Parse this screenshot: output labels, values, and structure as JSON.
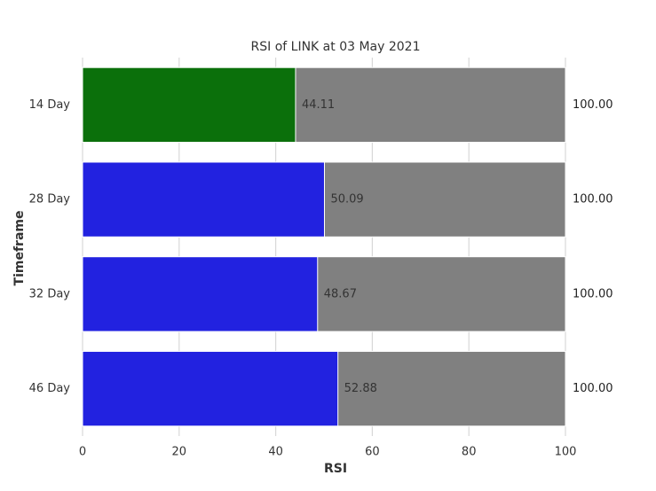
{
  "chart_data": {
    "type": "bar",
    "orientation": "horizontal",
    "barmode": "overlay",
    "title": "RSI of LINK at 03 May 2021",
    "xlabel": "RSI",
    "ylabel": "Timeframe",
    "categories": [
      "14 Day",
      "28 Day",
      "32 Day",
      "46 Day"
    ],
    "series": [
      {
        "values": [
          100,
          100,
          100,
          100
        ],
        "value_labels": [
          "100.00",
          "100.00",
          "100.00",
          "100.00"
        ],
        "color": "#808080"
      },
      {
        "values": [
          44.11,
          50.09,
          48.67,
          52.88
        ],
        "colors": [
          "#0b700b",
          "#2222e0",
          "#2222e0",
          "#2222e0"
        ]
      }
    ],
    "xlim": [
      0,
      100
    ],
    "xticks": [
      0,
      20,
      40,
      60,
      80,
      100
    ],
    "grid": true
  }
}
